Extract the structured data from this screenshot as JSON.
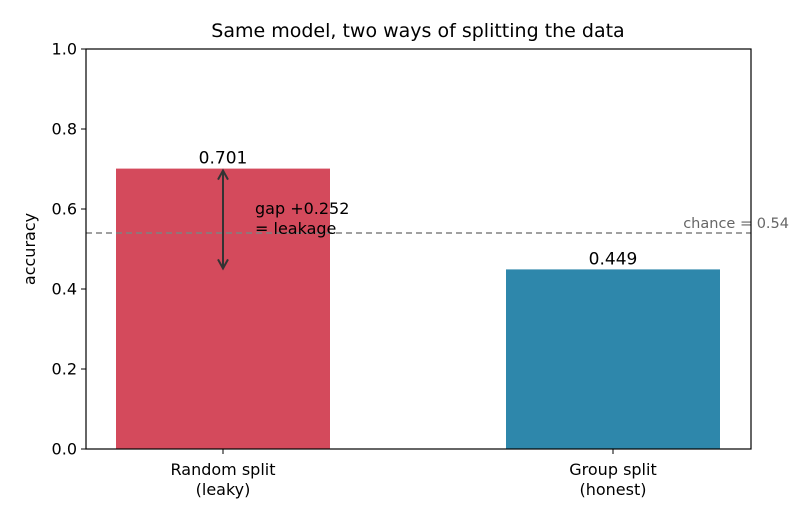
{
  "chart_data": {
    "type": "bar",
    "title": "Same model, two ways of splitting the data",
    "xlabel": "",
    "ylabel": "accuracy",
    "ylim": [
      0,
      1.0
    ],
    "yticks": [
      "0.0",
      "0.2",
      "0.4",
      "0.6",
      "0.8",
      "1.0"
    ],
    "categories": [
      {
        "line1": "Random split",
        "line2": "(leaky)"
      },
      {
        "line1": "Group split",
        "line2": "(honest)"
      }
    ],
    "values": [
      0.701,
      0.449
    ],
    "value_labels": [
      "0.701",
      "0.449"
    ],
    "bar_colors": [
      "#d44a5c",
      "#2e87ab"
    ],
    "chance": {
      "value": 0.54,
      "label": "chance = 0.54",
      "color": "#808080"
    },
    "gap_annotation": {
      "line1": "gap +0.252",
      "line2": "= leakage",
      "arrow_from": 0.449,
      "arrow_to": 0.701,
      "color": "#333333"
    },
    "grid": false,
    "legend": "none"
  }
}
